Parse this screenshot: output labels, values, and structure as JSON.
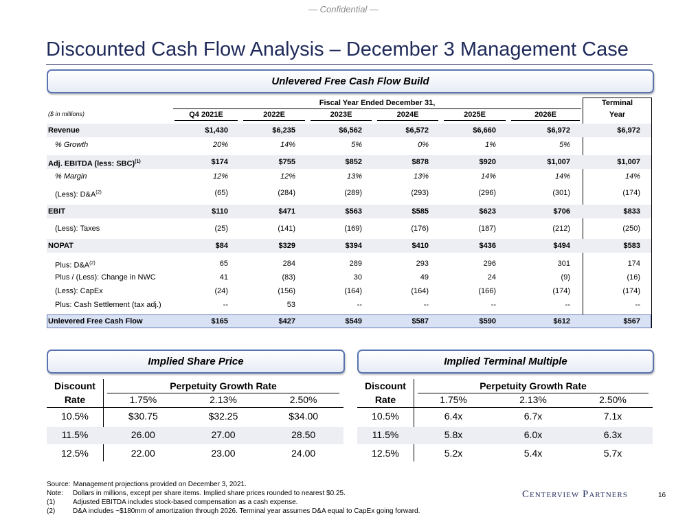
{
  "confidential": "— Confidential —",
  "title": "Discounted Cash Flow Analysis – December 3 Management Case",
  "ufcf": {
    "section_title": "Unlevered Free Cash Flow Build",
    "group_header": "Fiscal Year Ended December 31,",
    "terminal_header": [
      "Terminal",
      "Year"
    ],
    "units": "($ in millions)",
    "columns": [
      "Q4 2021E",
      "2022E",
      "2023E",
      "2024E",
      "2025E",
      "2026E"
    ],
    "rows": [
      {
        "label": "Revenue",
        "style": "bold",
        "values": [
          "$1,430",
          "$6,235",
          "$6,562",
          "$6,572",
          "$6,660",
          "$6,972",
          "$6,972"
        ]
      },
      {
        "label": "% Growth",
        "style": "italic",
        "values": [
          "20%",
          "14%",
          "5%",
          "0%",
          "1%",
          "5%",
          null
        ]
      },
      {
        "label": "Adj. EBITDA (less: SBC)",
        "note": "(1)",
        "style": "bold",
        "values": [
          "$174",
          "$755",
          "$852",
          "$878",
          "$920",
          "$1,007",
          "$1,007"
        ]
      },
      {
        "label": "% Margin",
        "style": "italic",
        "values": [
          "12%",
          "12%",
          "13%",
          "13%",
          "14%",
          "14%",
          "14%"
        ]
      },
      {
        "label": "(Less): D&A",
        "note": "(2)",
        "style": "plain",
        "values": [
          "(65)",
          "(284)",
          "(289)",
          "(293)",
          "(296)",
          "(301)",
          "(174)"
        ]
      },
      {
        "label": "EBIT",
        "style": "bold",
        "values": [
          "$110",
          "$471",
          "$563",
          "$585",
          "$623",
          "$706",
          "$833"
        ]
      },
      {
        "label": "(Less): Taxes",
        "style": "plain",
        "values": [
          "(25)",
          "(141)",
          "(169)",
          "(176)",
          "(187)",
          "(212)",
          "(250)"
        ]
      },
      {
        "label": "NOPAT",
        "style": "bold",
        "values": [
          "$84",
          "$329",
          "$394",
          "$410",
          "$436",
          "$494",
          "$583"
        ]
      },
      {
        "label": "Plus: D&A",
        "note": "(2)",
        "style": "plain",
        "values": [
          "65",
          "284",
          "289",
          "293",
          "296",
          "301",
          "174"
        ]
      },
      {
        "label": "Plus / (Less): Change in NWC",
        "style": "plain",
        "values": [
          "41",
          "(83)",
          "30",
          "49",
          "24",
          "(9)",
          "(16)"
        ]
      },
      {
        "label": "(Less): CapEx",
        "style": "plain",
        "values": [
          "(24)",
          "(156)",
          "(164)",
          "(164)",
          "(166)",
          "(174)",
          "(174)"
        ]
      },
      {
        "label": "Plus: Cash Settlement (tax adj.)",
        "style": "plain",
        "values": [
          "--",
          "53",
          "--",
          "--",
          "--",
          "--",
          "--"
        ]
      },
      {
        "label": "Unlevered Free Cash Flow",
        "style": "total",
        "values": [
          "$165",
          "$427",
          "$549",
          "$587",
          "$590",
          "$612",
          "$567"
        ]
      }
    ]
  },
  "share_price": {
    "section_title": "Implied Share Price",
    "row_header": [
      "Discount",
      "Rate"
    ],
    "column_header": "Perpetuity Growth Rate",
    "columns": [
      "1.75%",
      "2.13%",
      "2.50%"
    ],
    "rows": [
      {
        "label": "10.5%",
        "values": [
          "$30.75",
          "$32.25",
          "$34.00"
        ]
      },
      {
        "label": "11.5%",
        "values": [
          "26.00",
          "27.00",
          "28.50"
        ]
      },
      {
        "label": "12.5%",
        "values": [
          "22.00",
          "23.00",
          "24.00"
        ]
      }
    ]
  },
  "terminal_multiple": {
    "section_title": "Implied Terminal Multiple",
    "row_header": [
      "Discount",
      "Rate"
    ],
    "column_header": "Perpetuity Growth Rate",
    "columns": [
      "1.75%",
      "2.13%",
      "2.50%"
    ],
    "rows": [
      {
        "label": "10.5%",
        "values": [
          "6.4x",
          "6.7x",
          "7.1x"
        ]
      },
      {
        "label": "11.5%",
        "values": [
          "5.8x",
          "6.0x",
          "6.3x"
        ]
      },
      {
        "label": "12.5%",
        "values": [
          "5.2x",
          "5.4x",
          "5.7x"
        ]
      }
    ]
  },
  "footnotes": [
    {
      "marker": "Source:",
      "text": "Management projections provided on December 3, 2021."
    },
    {
      "marker": "Note:",
      "text": "Dollars in millions, except per share items. Implied share prices rounded to nearest $0.25."
    },
    {
      "marker": "(1)",
      "text": "Adjusted EBITDA includes stock-based compensation as a cash expense."
    },
    {
      "marker": "(2)",
      "text": "D&A includes ~$180mm of amortization through 2026. Terminal year assumes D&A equal to CapEx going forward."
    }
  ],
  "logo": "Centerview Partners",
  "page_number": "16"
}
